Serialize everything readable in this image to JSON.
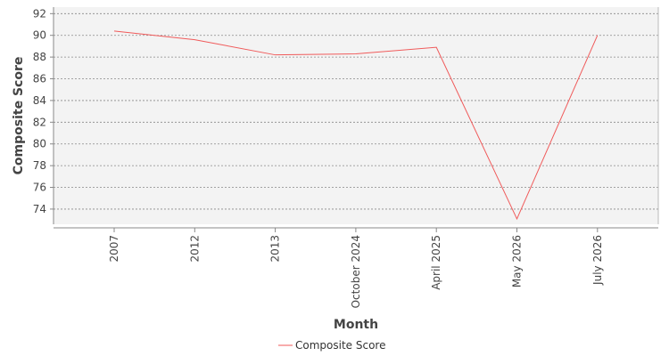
{
  "chart_data": {
    "type": "line",
    "categories": [
      "2007",
      "2012",
      "2013",
      "October 2024",
      "April 2025",
      "May 2026",
      "July 2026"
    ],
    "series": [
      {
        "name": "Composite Score",
        "values": [
          90.4,
          89.6,
          88.2,
          88.3,
          88.9,
          73.1,
          90.0
        ],
        "color": "#f05a5a"
      }
    ],
    "xlabel": "Month",
    "ylabel": "Composite Score",
    "ylim": [
      72.6,
      92.6
    ],
    "yticks": [
      74,
      76,
      78,
      80,
      82,
      84,
      86,
      88,
      90,
      92
    ],
    "grid": true,
    "legend_position": "bottom",
    "background": "#f3f3f3",
    "grid_color": "#888888"
  }
}
